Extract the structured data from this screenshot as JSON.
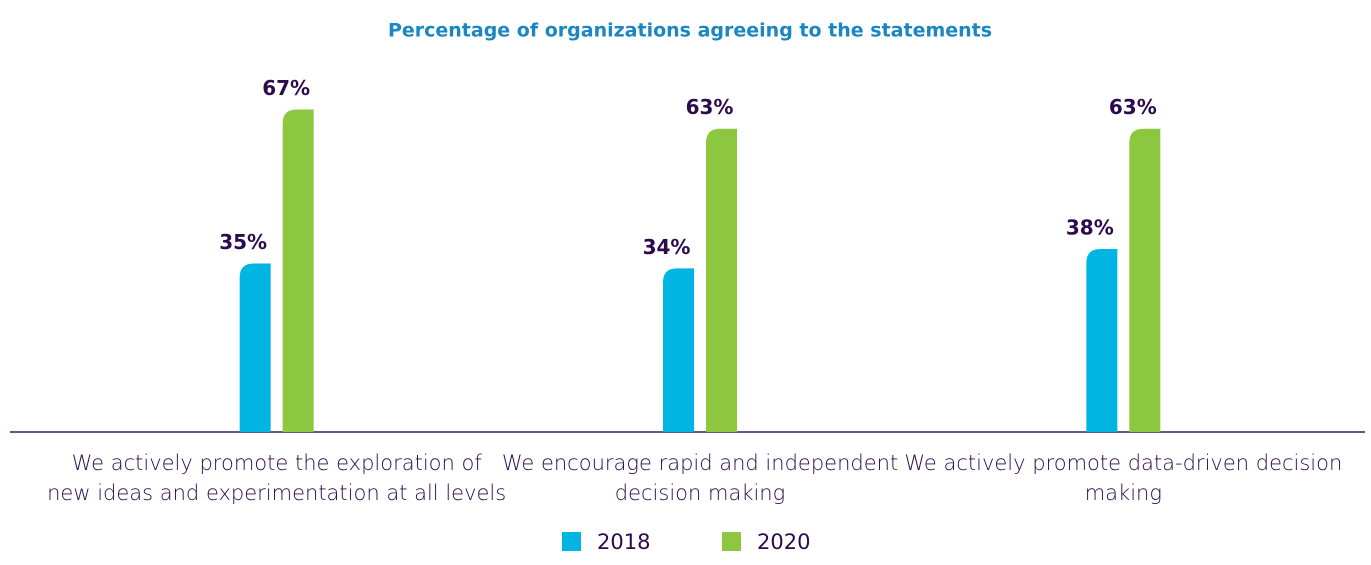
{
  "chart_data": {
    "type": "bar",
    "title": "Percentage of organizations agreeing to the statements",
    "categories": [
      "We actively promote the exploration of new ideas and experimentation at all levels",
      "We encourage rapid and independent decision making",
      "We actively promote data-driven decision making"
    ],
    "series": [
      {
        "name": "2018",
        "color": "#00b5e2",
        "values": [
          35,
          34,
          38
        ],
        "value_labels": [
          "35%",
          "34%",
          "38%"
        ]
      },
      {
        "name": "2020",
        "color": "#8dc63f",
        "values": [
          67,
          63,
          63
        ],
        "value_labels": [
          "67%",
          "63%",
          "63%"
        ]
      }
    ],
    "ylim": [
      0,
      70
    ]
  }
}
